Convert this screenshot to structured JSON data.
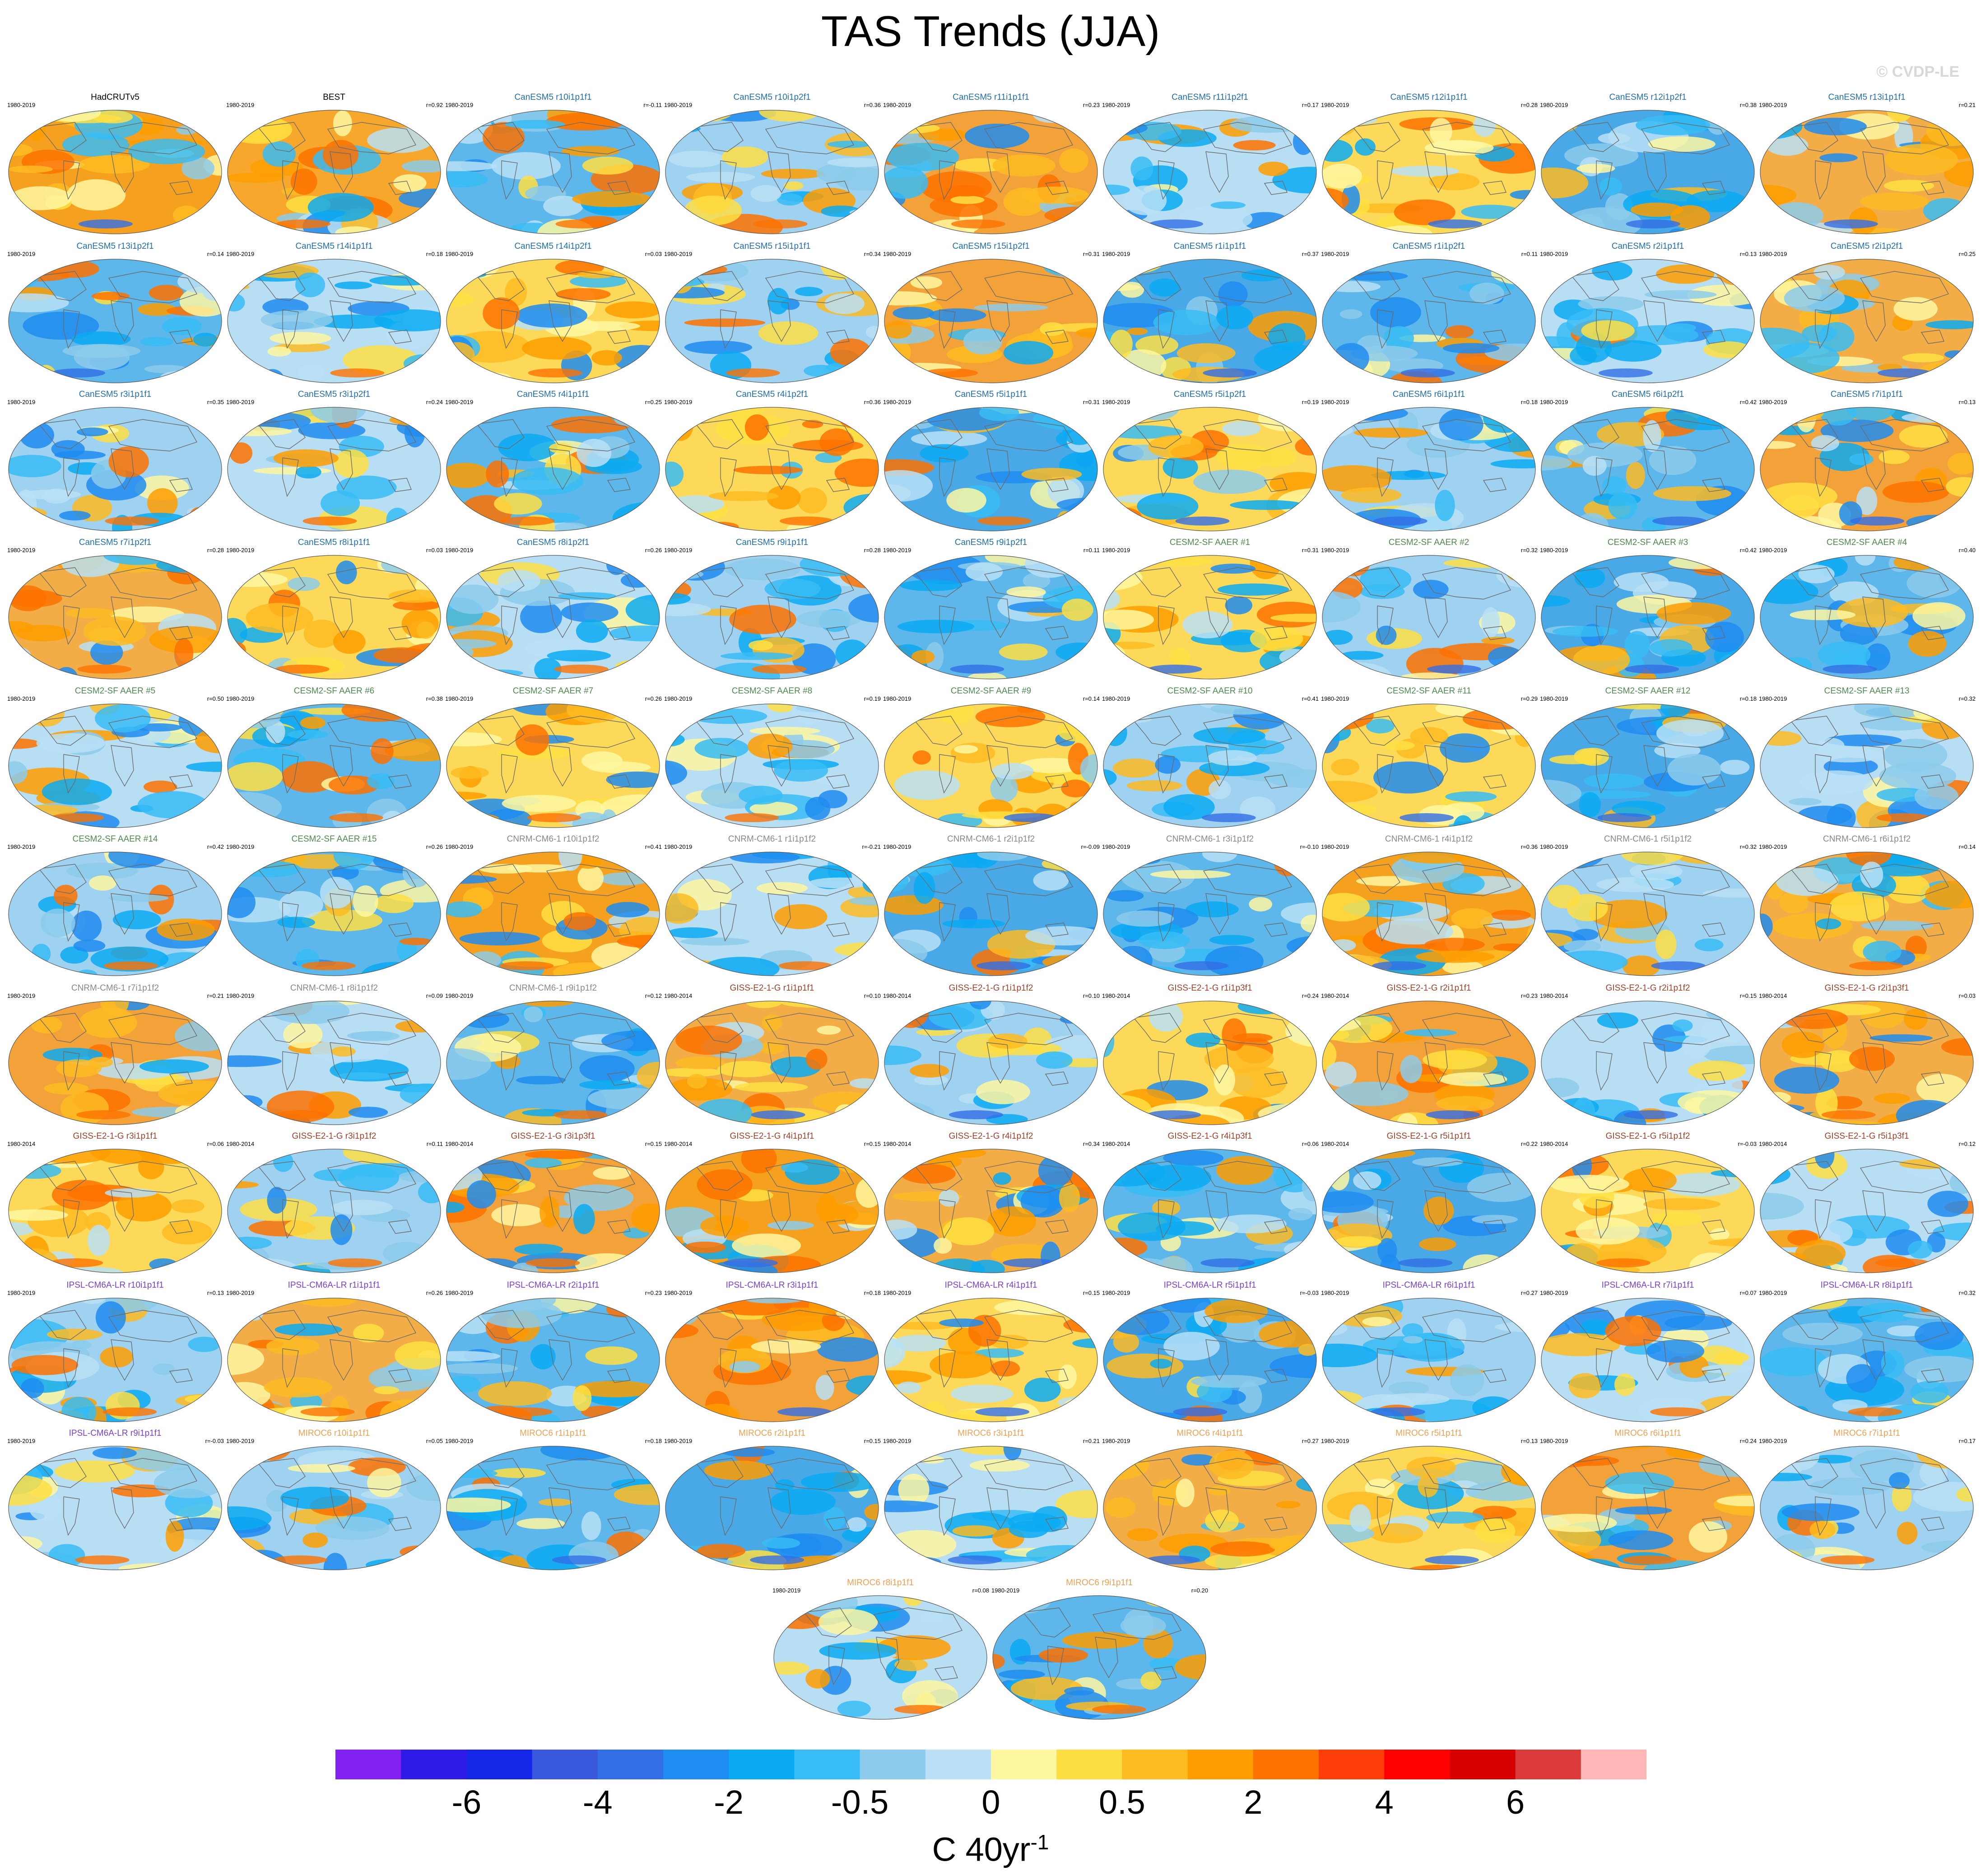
{
  "figure": {
    "title": "TAS Trends (JJA)",
    "copyright": "© CVDP-LE",
    "units_base": "C 40yr",
    "units_sup": "-1"
  },
  "colors": {
    "models": {
      "obs": "#000000",
      "CanESM5": "#1f6fb0",
      "CESM2-SF AAER": "#4e8a4e",
      "CNRM-CM6-1": "#888888",
      "GISS-E2-1-G": "#a0402a",
      "IPSL-CM6A-LR": "#7b3fd0",
      "MIROC6": "#f0a050"
    },
    "map_styles": [
      "#f6a01f",
      "#f7a72c",
      "#5db7ea",
      "#9fd2f0",
      "#f3a23a",
      "#b8def4",
      "#fdd95a",
      "#49a8e6",
      "#f2ad47"
    ]
  },
  "colorbar": {
    "colors": [
      "#8122f0",
      "#2f1ae8",
      "#1526e6",
      "#3a58dc",
      "#326ee6",
      "#1e8cf0",
      "#0aaaf2",
      "#37bcf5",
      "#8ccbeb",
      "#b9e0f6",
      "#fef7a1",
      "#fedf43",
      "#fdbb22",
      "#fe9e00",
      "#fd7200",
      "#fe3e08",
      "#fe0000",
      "#d60000",
      "#dc3a3a",
      "#feb6b6"
    ],
    "tick_labels": [
      "-6",
      "-4",
      "-2",
      "-0.5",
      "0",
      "0.5",
      "2",
      "4",
      "6"
    ],
    "tick_boundaries": [
      2,
      4,
      6,
      8,
      10,
      12,
      14,
      16,
      18
    ]
  },
  "chart_data": {
    "type": "heatmap",
    "title": "TAS Trends (JJA)",
    "colorbar_units": "C 40yr^-1",
    "colorbar_labels": [
      "-6",
      "-4",
      "-2",
      "-0.5",
      "0",
      "0.5",
      "2",
      "4",
      "6"
    ],
    "panels": [
      {
        "name": "HadCRUTv5",
        "period": "1980-2019",
        "r": "",
        "model": "obs",
        "style": 0
      },
      {
        "name": "BEST",
        "period": "1980-2019",
        "r": "r=0.92",
        "model": "obs",
        "style": 1
      },
      {
        "name": "CanESM5 r10i1p1f1",
        "period": "1980-2019",
        "r": "r=-0.11",
        "model": "CanESM5",
        "style": 2
      },
      {
        "name": "CanESM5 r10i1p2f1",
        "period": "1980-2019",
        "r": "r=0.36",
        "model": "CanESM5",
        "style": 3
      },
      {
        "name": "CanESM5 r11i1p1f1",
        "period": "1980-2019",
        "r": "r=0.23",
        "model": "CanESM5",
        "style": 4
      },
      {
        "name": "CanESM5 r11i1p2f1",
        "period": "1980-2019",
        "r": "r=0.17",
        "model": "CanESM5",
        "style": 5
      },
      {
        "name": "CanESM5 r12i1p1f1",
        "period": "1980-2019",
        "r": "r=0.28",
        "model": "CanESM5",
        "style": 6
      },
      {
        "name": "CanESM5 r12i1p2f1",
        "period": "1980-2019",
        "r": "r=0.38",
        "model": "CanESM5",
        "style": 7
      },
      {
        "name": "CanESM5 r13i1p1f1",
        "period": "1980-2019",
        "r": "r=0.21",
        "model": "CanESM5",
        "style": 8
      },
      {
        "name": "CanESM5 r13i1p2f1",
        "period": "1980-2019",
        "r": "r=0.14",
        "model": "CanESM5",
        "style": 2
      },
      {
        "name": "CanESM5 r14i1p1f1",
        "period": "1980-2019",
        "r": "r=0.18",
        "model": "CanESM5",
        "style": 5
      },
      {
        "name": "CanESM5 r14i1p2f1",
        "period": "1980-2019",
        "r": "r=0.03",
        "model": "CanESM5",
        "style": 6
      },
      {
        "name": "CanESM5 r15i1p1f1",
        "period": "1980-2019",
        "r": "r=0.34",
        "model": "CanESM5",
        "style": 3
      },
      {
        "name": "CanESM5 r15i1p2f1",
        "period": "1980-2019",
        "r": "r=0.31",
        "model": "CanESM5",
        "style": 4
      },
      {
        "name": "CanESM5 r1i1p1f1",
        "period": "1980-2019",
        "r": "r=0.37",
        "model": "CanESM5",
        "style": 7
      },
      {
        "name": "CanESM5 r1i1p2f1",
        "period": "1980-2019",
        "r": "r=0.11",
        "model": "CanESM5",
        "style": 2
      },
      {
        "name": "CanESM5 r2i1p1f1",
        "period": "1980-2019",
        "r": "r=0.13",
        "model": "CanESM5",
        "style": 5
      },
      {
        "name": "CanESM5 r2i1p2f1",
        "period": "1980-2019",
        "r": "r=0.25",
        "model": "CanESM5",
        "style": 8
      },
      {
        "name": "CanESM5 r3i1p1f1",
        "period": "1980-2019",
        "r": "r=0.35",
        "model": "CanESM5",
        "style": 3
      },
      {
        "name": "CanESM5 r3i1p2f1",
        "period": "1980-2019",
        "r": "r=0.24",
        "model": "CanESM5",
        "style": 5
      },
      {
        "name": "CanESM5 r4i1p1f1",
        "period": "1980-2019",
        "r": "r=0.25",
        "model": "CanESM5",
        "style": 2
      },
      {
        "name": "CanESM5 r4i1p2f1",
        "period": "1980-2019",
        "r": "r=0.36",
        "model": "CanESM5",
        "style": 6
      },
      {
        "name": "CanESM5 r5i1p1f1",
        "period": "1980-2019",
        "r": "r=0.31",
        "model": "CanESM5",
        "style": 7
      },
      {
        "name": "CanESM5 r5i1p2f1",
        "period": "1980-2019",
        "r": "r=0.19",
        "model": "CanESM5",
        "style": 6
      },
      {
        "name": "CanESM5 r6i1p1f1",
        "period": "1980-2019",
        "r": "r=0.18",
        "model": "CanESM5",
        "style": 3
      },
      {
        "name": "CanESM5 r6i1p2f1",
        "period": "1980-2019",
        "r": "r=0.42",
        "model": "CanESM5",
        "style": 2
      },
      {
        "name": "CanESM5 r7i1p1f1",
        "period": "1980-2019",
        "r": "r=0.13",
        "model": "CanESM5",
        "style": 4
      },
      {
        "name": "CanESM5 r7i1p2f1",
        "period": "1980-2019",
        "r": "r=0.28",
        "model": "CanESM5",
        "style": 8
      },
      {
        "name": "CanESM5 r8i1p1f1",
        "period": "1980-2019",
        "r": "r=0.03",
        "model": "CanESM5",
        "style": 6
      },
      {
        "name": "CanESM5 r8i1p2f1",
        "period": "1980-2019",
        "r": "r=0.26",
        "model": "CanESM5",
        "style": 5
      },
      {
        "name": "CanESM5 r9i1p1f1",
        "period": "1980-2019",
        "r": "r=0.28",
        "model": "CanESM5",
        "style": 3
      },
      {
        "name": "CanESM5 r9i1p2f1",
        "period": "1980-2019",
        "r": "r=0.11",
        "model": "CanESM5",
        "style": 2
      },
      {
        "name": "CESM2-SF AAER #1",
        "period": "1980-2019",
        "r": "r=0.31",
        "model": "CESM2-SF AAER",
        "style": 6
      },
      {
        "name": "CESM2-SF AAER #2",
        "period": "1980-2019",
        "r": "r=0.32",
        "model": "CESM2-SF AAER",
        "style": 3
      },
      {
        "name": "CESM2-SF AAER #3",
        "period": "1980-2019",
        "r": "r=0.42",
        "model": "CESM2-SF AAER",
        "style": 7
      },
      {
        "name": "CESM2-SF AAER #4",
        "period": "1980-2019",
        "r": "r=0.40",
        "model": "CESM2-SF AAER",
        "style": 2
      },
      {
        "name": "CESM2-SF AAER #5",
        "period": "1980-2019",
        "r": "r=0.50",
        "model": "CESM2-SF AAER",
        "style": 5
      },
      {
        "name": "CESM2-SF AAER #6",
        "period": "1980-2019",
        "r": "r=0.38",
        "model": "CESM2-SF AAER",
        "style": 2
      },
      {
        "name": "CESM2-SF AAER #7",
        "period": "1980-2019",
        "r": "r=0.26",
        "model": "CESM2-SF AAER",
        "style": 6
      },
      {
        "name": "CESM2-SF AAER #8",
        "period": "1980-2019",
        "r": "r=0.19",
        "model": "CESM2-SF AAER",
        "style": 5
      },
      {
        "name": "CESM2-SF AAER #9",
        "period": "1980-2019",
        "r": "r=0.14",
        "model": "CESM2-SF AAER",
        "style": 6
      },
      {
        "name": "CESM2-SF AAER #10",
        "period": "1980-2019",
        "r": "r=0.41",
        "model": "CESM2-SF AAER",
        "style": 3
      },
      {
        "name": "CESM2-SF AAER #11",
        "period": "1980-2019",
        "r": "r=0.29",
        "model": "CESM2-SF AAER",
        "style": 6
      },
      {
        "name": "CESM2-SF AAER #12",
        "period": "1980-2019",
        "r": "r=0.18",
        "model": "CESM2-SF AAER",
        "style": 7
      },
      {
        "name": "CESM2-SF AAER #13",
        "period": "1980-2019",
        "r": "r=0.32",
        "model": "CESM2-SF AAER",
        "style": 5
      },
      {
        "name": "CESM2-SF AAER #14",
        "period": "1980-2019",
        "r": "r=0.42",
        "model": "CESM2-SF AAER",
        "style": 3
      },
      {
        "name": "CESM2-SF AAER #15",
        "period": "1980-2019",
        "r": "r=0.26",
        "model": "CESM2-SF AAER",
        "style": 2
      },
      {
        "name": "CNRM-CM6-1 r10i1p1f2",
        "period": "1980-2019",
        "r": "r=0.41",
        "model": "CNRM-CM6-1",
        "style": 0
      },
      {
        "name": "CNRM-CM6-1 r1i1p1f2",
        "period": "1980-2019",
        "r": "r=-0.21",
        "model": "CNRM-CM6-1",
        "style": 5
      },
      {
        "name": "CNRM-CM6-1 r2i1p1f2",
        "period": "1980-2019",
        "r": "r=-0.09",
        "model": "CNRM-CM6-1",
        "style": 7
      },
      {
        "name": "CNRM-CM6-1 r3i1p1f2",
        "period": "1980-2019",
        "r": "r=-0.10",
        "model": "CNRM-CM6-1",
        "style": 2
      },
      {
        "name": "CNRM-CM6-1 r4i1p1f2",
        "period": "1980-2019",
        "r": "r=0.36",
        "model": "CNRM-CM6-1",
        "style": 0
      },
      {
        "name": "CNRM-CM6-1 r5i1p1f2",
        "period": "1980-2019",
        "r": "r=0.32",
        "model": "CNRM-CM6-1",
        "style": 3
      },
      {
        "name": "CNRM-CM6-1 r6i1p1f2",
        "period": "1980-2019",
        "r": "r=0.14",
        "model": "CNRM-CM6-1",
        "style": 8
      },
      {
        "name": "CNRM-CM6-1 r7i1p1f2",
        "period": "1980-2019",
        "r": "r=0.21",
        "model": "CNRM-CM6-1",
        "style": 4
      },
      {
        "name": "CNRM-CM6-1 r8i1p1f2",
        "period": "1980-2019",
        "r": "r=0.09",
        "model": "CNRM-CM6-1",
        "style": 5
      },
      {
        "name": "CNRM-CM6-1 r9i1p1f2",
        "period": "1980-2019",
        "r": "r=0.12",
        "model": "CNRM-CM6-1",
        "style": 2
      },
      {
        "name": "GISS-E2-1-G r1i1p1f1",
        "period": "1980-2014",
        "r": "r=0.10",
        "model": "GISS-E2-1-G",
        "style": 8
      },
      {
        "name": "GISS-E2-1-G r1i1p1f2",
        "period": "1980-2014",
        "r": "r=0.10",
        "model": "GISS-E2-1-G",
        "style": 3
      },
      {
        "name": "GISS-E2-1-G r1i1p3f1",
        "period": "1980-2014",
        "r": "r=0.24",
        "model": "GISS-E2-1-G",
        "style": 6
      },
      {
        "name": "GISS-E2-1-G r2i1p1f1",
        "period": "1980-2014",
        "r": "r=0.23",
        "model": "GISS-E2-1-G",
        "style": 4
      },
      {
        "name": "GISS-E2-1-G r2i1p1f2",
        "period": "1980-2014",
        "r": "r=0.15",
        "model": "GISS-E2-1-G",
        "style": 5
      },
      {
        "name": "GISS-E2-1-G r2i1p3f1",
        "period": "1980-2014",
        "r": "r=0.03",
        "model": "GISS-E2-1-G",
        "style": 8
      },
      {
        "name": "GISS-E2-1-G r3i1p1f1",
        "period": "1980-2014",
        "r": "r=0.06",
        "model": "GISS-E2-1-G",
        "style": 6
      },
      {
        "name": "GISS-E2-1-G r3i1p1f2",
        "period": "1980-2014",
        "r": "r=0.11",
        "model": "GISS-E2-1-G",
        "style": 3
      },
      {
        "name": "GISS-E2-1-G r3i1p3f1",
        "period": "1980-2014",
        "r": "r=0.15",
        "model": "GISS-E2-1-G",
        "style": 4
      },
      {
        "name": "GISS-E2-1-G r4i1p1f1",
        "period": "1980-2014",
        "r": "r=0.15",
        "model": "GISS-E2-1-G",
        "style": 0
      },
      {
        "name": "GISS-E2-1-G r4i1p1f2",
        "period": "1980-2014",
        "r": "r=0.34",
        "model": "GISS-E2-1-G",
        "style": 8
      },
      {
        "name": "GISS-E2-1-G r4i1p3f1",
        "period": "1980-2014",
        "r": "r=0.06",
        "model": "GISS-E2-1-G",
        "style": 2
      },
      {
        "name": "GISS-E2-1-G r5i1p1f1",
        "period": "1980-2014",
        "r": "r=0.22",
        "model": "GISS-E2-1-G",
        "style": 7
      },
      {
        "name": "GISS-E2-1-G r5i1p1f2",
        "period": "1980-2014",
        "r": "r=-0.03",
        "model": "GISS-E2-1-G",
        "style": 6
      },
      {
        "name": "GISS-E2-1-G r5i1p3f1",
        "period": "1980-2014",
        "r": "r=0.12",
        "model": "GISS-E2-1-G",
        "style": 5
      },
      {
        "name": "IPSL-CM6A-LR r10i1p1f1",
        "period": "1980-2019",
        "r": "r=0.13",
        "model": "IPSL-CM6A-LR",
        "style": 3
      },
      {
        "name": "IPSL-CM6A-LR r1i1p1f1",
        "period": "1980-2019",
        "r": "r=0.26",
        "model": "IPSL-CM6A-LR",
        "style": 8
      },
      {
        "name": "IPSL-CM6A-LR r2i1p1f1",
        "period": "1980-2019",
        "r": "r=0.23",
        "model": "IPSL-CM6A-LR",
        "style": 2
      },
      {
        "name": "IPSL-CM6A-LR r3i1p1f1",
        "period": "1980-2019",
        "r": "r=0.18",
        "model": "IPSL-CM6A-LR",
        "style": 4
      },
      {
        "name": "IPSL-CM6A-LR r4i1p1f1",
        "period": "1980-2019",
        "r": "r=0.15",
        "model": "IPSL-CM6A-LR",
        "style": 6
      },
      {
        "name": "IPSL-CM6A-LR r5i1p1f1",
        "period": "1980-2019",
        "r": "r=-0.03",
        "model": "IPSL-CM6A-LR",
        "style": 7
      },
      {
        "name": "IPSL-CM6A-LR r6i1p1f1",
        "period": "1980-2019",
        "r": "r=0.27",
        "model": "IPSL-CM6A-LR",
        "style": 3
      },
      {
        "name": "IPSL-CM6A-LR r7i1p1f1",
        "period": "1980-2019",
        "r": "r=0.07",
        "model": "IPSL-CM6A-LR",
        "style": 5
      },
      {
        "name": "IPSL-CM6A-LR r8i1p1f1",
        "period": "1980-2019",
        "r": "r=0.32",
        "model": "IPSL-CM6A-LR",
        "style": 2
      },
      {
        "name": "IPSL-CM6A-LR r9i1p1f1",
        "period": "1980-2019",
        "r": "r=-0.03",
        "model": "IPSL-CM6A-LR",
        "style": 5
      },
      {
        "name": "MIROC6 r10i1p1f1",
        "period": "1980-2019",
        "r": "r=0.05",
        "model": "MIROC6",
        "style": 3
      },
      {
        "name": "MIROC6 r1i1p1f1",
        "period": "1980-2019",
        "r": "r=0.18",
        "model": "MIROC6",
        "style": 2
      },
      {
        "name": "MIROC6 r2i1p1f1",
        "period": "1980-2019",
        "r": "r=0.15",
        "model": "MIROC6",
        "style": 7
      },
      {
        "name": "MIROC6 r3i1p1f1",
        "period": "1980-2019",
        "r": "r=0.21",
        "model": "MIROC6",
        "style": 5
      },
      {
        "name": "MIROC6 r4i1p1f1",
        "period": "1980-2019",
        "r": "r=0.27",
        "model": "MIROC6",
        "style": 8
      },
      {
        "name": "MIROC6 r5i1p1f1",
        "period": "1980-2019",
        "r": "r=0.13",
        "model": "MIROC6",
        "style": 6
      },
      {
        "name": "MIROC6 r6i1p1f1",
        "period": "1980-2019",
        "r": "r=0.24",
        "model": "MIROC6",
        "style": 4
      },
      {
        "name": "MIROC6 r7i1p1f1",
        "period": "1980-2019",
        "r": "r=0.17",
        "model": "MIROC6",
        "style": 3
      },
      {
        "name": "MIROC6 r8i1p1f1",
        "period": "1980-2019",
        "r": "r=0.08",
        "model": "MIROC6",
        "style": 5
      },
      {
        "name": "MIROC6 r9i1p1f1",
        "period": "1980-2019",
        "r": "r=0.20",
        "model": "MIROC6",
        "style": 2
      }
    ]
  }
}
